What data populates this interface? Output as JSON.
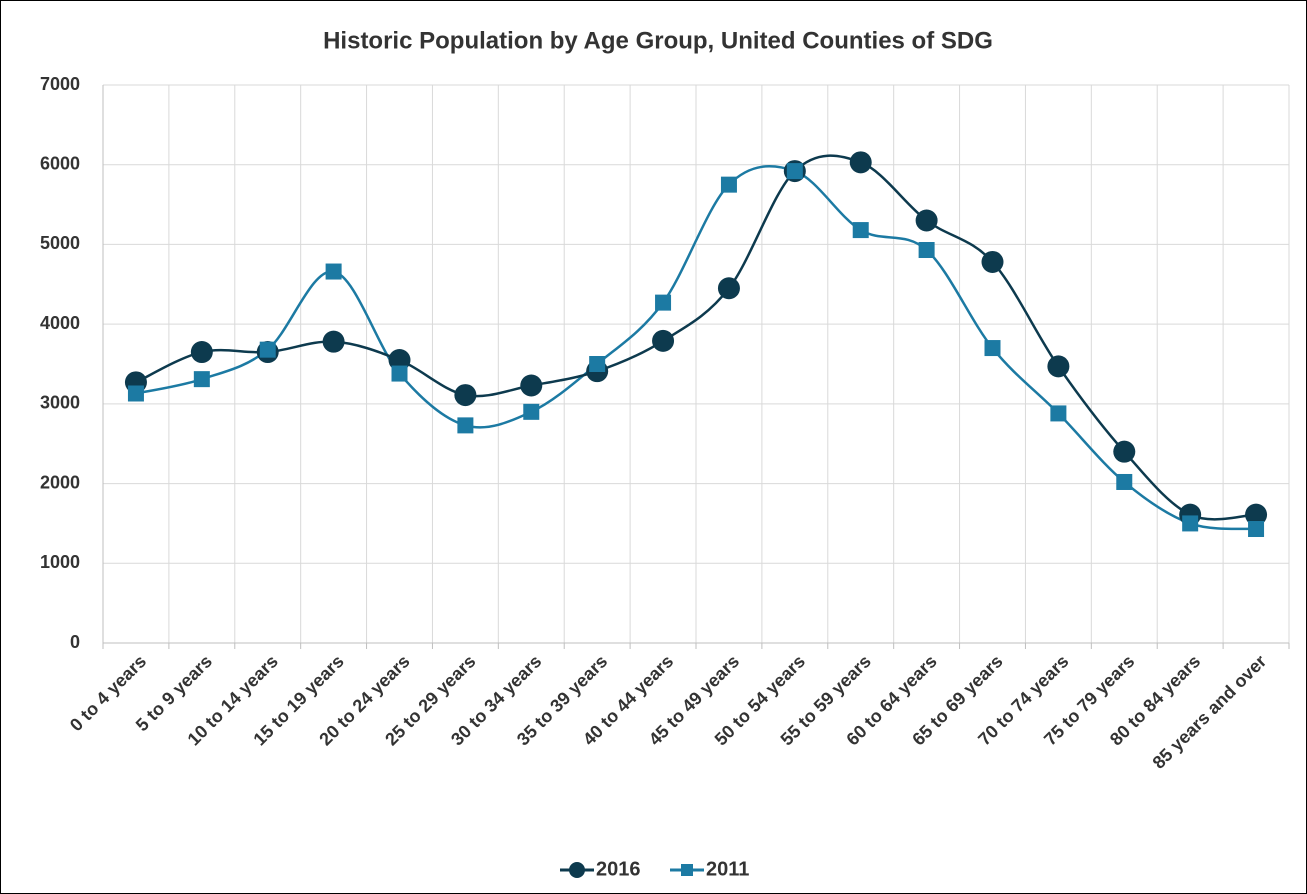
{
  "chart_data": {
    "type": "line",
    "title": "Historic Population by Age Group, United Counties of SDG",
    "categories": [
      "0 to 4 years",
      "5 to 9 years",
      "10 to 14 years",
      "15 to 19 years",
      "20 to 24 years",
      "25 to 29 years",
      "30 to 34 years",
      "35 to 39 years",
      "40 to 44 years",
      "45 to 49 years",
      "50 to 54 years",
      "55 to 59 years",
      "60 to 64 years",
      "65 to 69 years",
      "70 to 74 years",
      "75 to 79 years",
      "80 to 84 years",
      "85 years and over"
    ],
    "series": [
      {
        "name": "2016",
        "color": "#0d3a4e",
        "marker": "circle",
        "values": [
          3270,
          3650,
          3650,
          3780,
          3550,
          3110,
          3230,
          3410,
          3790,
          4450,
          5920,
          6030,
          5300,
          4780,
          3470,
          2400,
          1610,
          1610
        ]
      },
      {
        "name": "2011",
        "color": "#1c7aa3",
        "marker": "square",
        "values": [
          3130,
          3310,
          3680,
          4660,
          3380,
          2730,
          2900,
          3500,
          4270,
          5750,
          5920,
          5180,
          4930,
          3700,
          2880,
          2020,
          1500,
          1430
        ]
      }
    ],
    "ylim": [
      0,
      7000
    ],
    "yticks": [
      0,
      1000,
      2000,
      3000,
      4000,
      5000,
      6000,
      7000
    ],
    "grid": true,
    "smooth": true,
    "legend": "bottom"
  }
}
